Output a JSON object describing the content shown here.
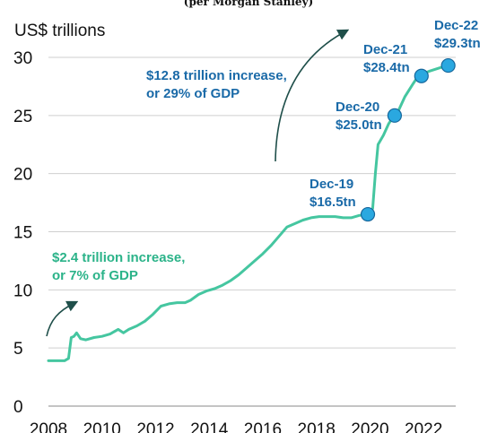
{
  "top_text": "(per Morgan Stanley)",
  "chart_data": {
    "type": "line",
    "title": "",
    "ylabel": "US$ trillions",
    "xlabel": "",
    "xlim": [
      2008,
      2023.2
    ],
    "ylim": [
      0,
      30
    ],
    "x_ticks": [
      "2008",
      "2010",
      "2012",
      "2014",
      "2016",
      "2018",
      "2020",
      "2022"
    ],
    "y_ticks": [
      "0",
      "5",
      "10",
      "15",
      "20",
      "25",
      "30"
    ],
    "grid": "horizontal",
    "legend": "none",
    "colors": {
      "line": "#45c6a0",
      "green_text": "#2bb389",
      "blue_text": "#1a6aa8",
      "marker": "#2aa8e0",
      "marker_stroke": "#16679c",
      "grid": "#cfcfcf",
      "arrow": "#1f4f4a"
    },
    "series": [
      {
        "x": [
          2008.0,
          2008.3,
          2008.6,
          2008.75,
          2008.85,
          2008.95,
          2009.05,
          2009.2,
          2009.4,
          2009.7,
          2010.0,
          2010.3,
          2010.6,
          2010.8,
          2011.0,
          2011.3,
          2011.6,
          2011.9,
          2012.2,
          2012.5,
          2012.8,
          2013.1,
          2013.3,
          2013.6,
          2013.9,
          2014.2,
          2014.5,
          2014.8,
          2015.1,
          2015.4,
          2015.7,
          2016.0,
          2016.3,
          2016.6,
          2016.9,
          2017.2,
          2017.5,
          2017.8,
          2018.1,
          2018.4,
          2018.7,
          2019.0,
          2019.3,
          2019.6,
          2019.9,
          2020.1,
          2020.2,
          2020.3,
          2020.5,
          2020.7,
          2020.9,
          2021.0,
          2021.3,
          2021.6,
          2021.8,
          2022.2,
          2022.6,
          2022.9
        ],
        "y": [
          3.9,
          3.9,
          3.9,
          4.1,
          5.9,
          6.0,
          6.3,
          5.8,
          5.7,
          5.9,
          6.0,
          6.2,
          6.6,
          6.3,
          6.6,
          6.9,
          7.3,
          7.9,
          8.6,
          8.8,
          8.9,
          8.9,
          9.1,
          9.6,
          9.9,
          10.1,
          10.4,
          10.8,
          11.3,
          11.9,
          12.5,
          13.1,
          13.8,
          14.6,
          15.4,
          15.7,
          16.0,
          16.2,
          16.3,
          16.3,
          16.3,
          16.2,
          16.2,
          16.4,
          16.5,
          17.0,
          20.0,
          22.5,
          23.3,
          24.3,
          25.0,
          25.1,
          26.6,
          27.7,
          28.4,
          28.8,
          29.1,
          29.3
        ]
      }
    ],
    "points": [
      {
        "x": 2019.92,
        "y": 16.5,
        "label1": "Dec-19",
        "label2": "$16.5tn"
      },
      {
        "x": 2020.92,
        "y": 25.0,
        "label1": "Dec-20",
        "label2": "$25.0tn"
      },
      {
        "x": 2021.92,
        "y": 28.4,
        "label1": "Dec-21",
        "label2": "$28.4tn"
      },
      {
        "x": 2022.92,
        "y": 29.3,
        "label1": "Dec-22",
        "label2": "$29.3tn"
      }
    ],
    "annotations": [
      {
        "line1": "$12.8 trillion increase,",
        "line2": "or 29% of GDP"
      },
      {
        "line1": "$2.4 trillion increase,",
        "line2": "or 7% of GDP"
      }
    ]
  }
}
